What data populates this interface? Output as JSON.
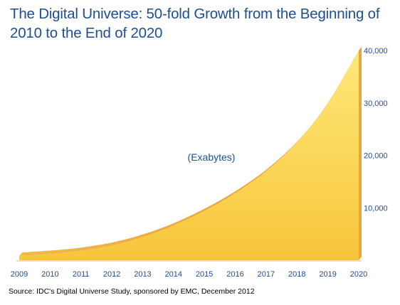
{
  "title": "The Digital Universe: 50-fold Growth from the Beginning of 2010 to the End of 2020",
  "source": "Source: IDC's Digital Universe Study, sponsored by EMC, December 2012",
  "colors": {
    "title": "#1f4e91",
    "axis_text": "#1f4e91",
    "fill_top": "#fde97a",
    "fill_bottom": "#f8c53a",
    "edge": "#e8a33a",
    "axis_line": "#1f4e91"
  },
  "chart_data": {
    "type": "area",
    "title": "The Digital Universe: 50-fold Growth from the Beginning of 2010 to the End of 2020",
    "annotation": "(Exabytes)",
    "x": [
      "2009",
      "2010",
      "2011",
      "2012",
      "2013",
      "2014",
      "2015",
      "2016",
      "2017",
      "2018",
      "2019",
      "2020"
    ],
    "series": [
      {
        "values": [
          800,
          1200,
          1800,
          2800,
          4400,
          6600,
          9400,
          12800,
          17000,
          22500,
          30000,
          40000
        ]
      }
    ],
    "y_ticks": [
      10000,
      20000,
      30000,
      40000
    ],
    "y_tick_labels": [
      "10,000",
      "20,000",
      "30,000",
      "40,000"
    ],
    "ylim": [
      0,
      40000
    ],
    "y_axis_side": "right",
    "grid": false,
    "legend": "none"
  }
}
